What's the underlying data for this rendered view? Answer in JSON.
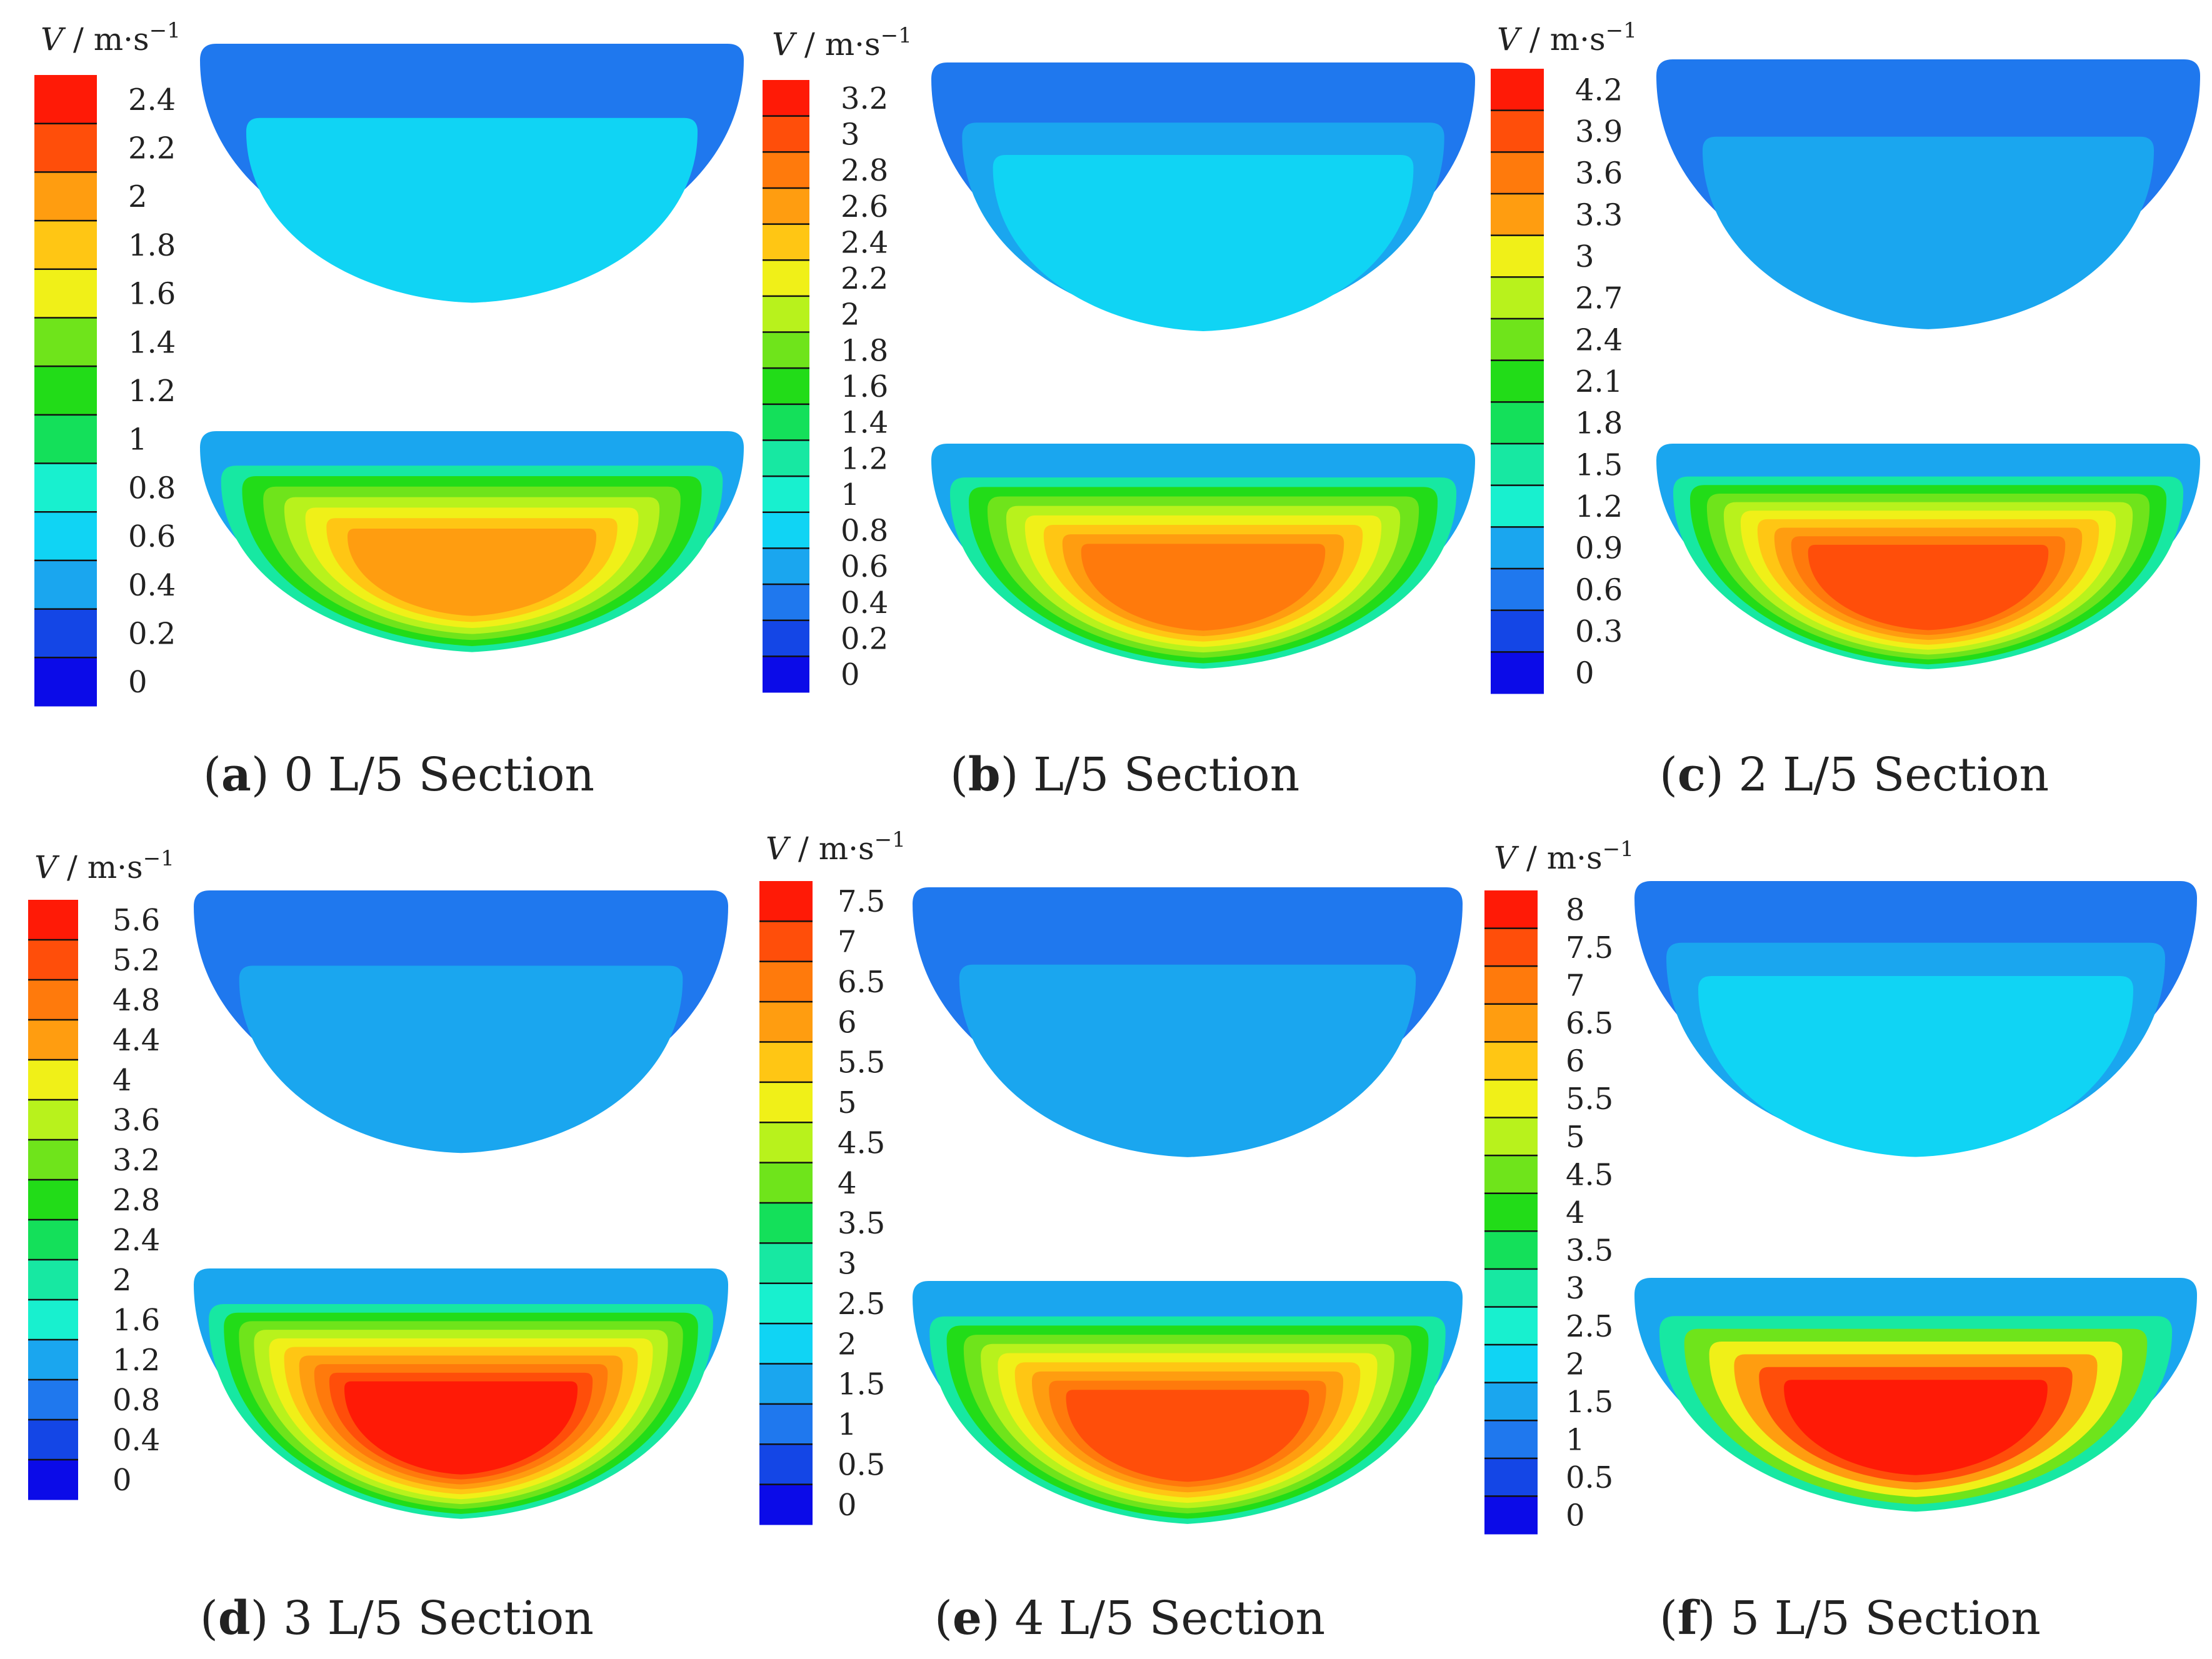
{
  "unit_label": {
    "symbol": "V",
    "unit": " / m·s",
    "exponent": "−1"
  },
  "palette": [
    "#0b0be8",
    "#1446e6",
    "#1f78ee",
    "#1aa6ef",
    "#10d4f4",
    "#18f0cf",
    "#17e8a2",
    "#14e05a",
    "#22dc18",
    "#6fe41b",
    "#b8f21c",
    "#f0f018",
    "#ffc614",
    "#ff9d10",
    "#ff7a0c",
    "#ff4e0a",
    "#ff1a06"
  ],
  "panels": [
    {
      "letter": "a",
      "caption_rest": " 0 L/5 Section",
      "colorbar_ticks": [
        "0",
        "0.2",
        "0.4",
        "0.6",
        "0.8",
        "1",
        "1.2",
        "1.4",
        "1.6",
        "1.8",
        "2",
        "2.2",
        "2.4"
      ],
      "top_contours": [
        "#1f78ee",
        "#10d4f4"
      ],
      "bottom_contours": [
        "#17e8a2",
        "#22dc18",
        "#6fe41b",
        "#b8f21c",
        "#f0f018",
        "#ffc614",
        "#ff9d10"
      ]
    },
    {
      "letter": "b",
      "caption_rest": " L/5 Section",
      "colorbar_ticks": [
        "0",
        "0.2",
        "0.4",
        "0.6",
        "0.8",
        "1",
        "1.2",
        "1.4",
        "1.6",
        "1.8",
        "2",
        "2.2",
        "2.4",
        "2.6",
        "2.8",
        "3",
        "3.2"
      ],
      "top_contours": [
        "#1f78ee",
        "#1aa6ef",
        "#10d4f4"
      ],
      "bottom_contours": [
        "#17e8a2",
        "#22dc18",
        "#6fe41b",
        "#b8f21c",
        "#f0f018",
        "#ffc614",
        "#ff9d10",
        "#ff7a0c"
      ]
    },
    {
      "letter": "c",
      "caption_rest": " 2 L/5 Section",
      "colorbar_ticks": [
        "0",
        "0.3",
        "0.6",
        "0.9",
        "1.2",
        "1.5",
        "1.8",
        "2.1",
        "2.4",
        "2.7",
        "3",
        "3.3",
        "3.6",
        "3.9",
        "4.2"
      ],
      "top_contours": [
        "#1f78ee",
        "#1aa6ef"
      ],
      "bottom_contours": [
        "#17e8a2",
        "#22dc18",
        "#6fe41b",
        "#b8f21c",
        "#f0f018",
        "#ffc614",
        "#ff9d10",
        "#ff7a0c",
        "#ff4e0a"
      ]
    },
    {
      "letter": "d",
      "caption_rest": " 3 L/5 Section",
      "colorbar_ticks": [
        "0",
        "0.4",
        "0.8",
        "1.2",
        "1.6",
        "2",
        "2.4",
        "2.8",
        "3.2",
        "3.6",
        "4",
        "4.4",
        "4.8",
        "5.2",
        "5.6"
      ],
      "top_contours": [
        "#1f78ee",
        "#1aa6ef"
      ],
      "bottom_contours": [
        "#17e8a2",
        "#22dc18",
        "#6fe41b",
        "#b8f21c",
        "#f0f018",
        "#ffc614",
        "#ff9d10",
        "#ff7a0c",
        "#ff4e0a",
        "#ff1a06"
      ]
    },
    {
      "letter": "e",
      "caption_rest": " 4 L/5 Section",
      "colorbar_ticks": [
        "0",
        "0.5",
        "1",
        "1.5",
        "2",
        "2.5",
        "3",
        "3.5",
        "4",
        "4.5",
        "5",
        "5.5",
        "6",
        "6.5",
        "7",
        "7.5"
      ],
      "top_contours": [
        "#1f78ee",
        "#1aa6ef"
      ],
      "bottom_contours": [
        "#17e8a2",
        "#22dc18",
        "#6fe41b",
        "#b8f21c",
        "#f0f018",
        "#ffc614",
        "#ff9d10",
        "#ff7a0c",
        "#ff4e0a"
      ]
    },
    {
      "letter": "f",
      "caption_rest": " 5 L/5 Section",
      "colorbar_ticks": [
        "0",
        "0.5",
        "1",
        "1.5",
        "2",
        "2.5",
        "3",
        "3.5",
        "4",
        "4.5",
        "5",
        "5.5",
        "6",
        "6.5",
        "7",
        "7.5",
        "8"
      ],
      "top_contours": [
        "#1f78ee",
        "#1aa6ef",
        "#10d4f4"
      ],
      "bottom_contours": [
        "#17e8a2",
        "#6fe41b",
        "#f0f018",
        "#ff9d10",
        "#ff4e0a",
        "#ff1a06"
      ]
    }
  ]
}
